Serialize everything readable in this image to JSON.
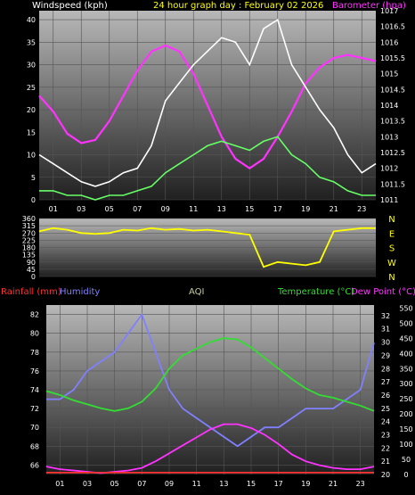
{
  "chart_data": [
    {
      "type": "line",
      "title": "24 hour graph day : February 02 2026",
      "ylabel": "Windspeed (kph)",
      "y2label": "Barometer (hpa)",
      "ylim": [
        0,
        42
      ],
      "y2lim": [
        1011,
        1017
      ],
      "yticks": [
        0,
        5,
        10,
        15,
        20,
        25,
        30,
        35,
        40
      ],
      "y2ticks": [
        1011,
        1011.5,
        1012,
        1012.5,
        1013,
        1013.5,
        1014,
        1014.5,
        1015,
        1015.5,
        1016,
        1016.5,
        1017
      ],
      "x_hours": [
        "01",
        "03",
        "05",
        "07",
        "09",
        "11",
        "13",
        "15",
        "17",
        "19",
        "21",
        "23"
      ],
      "colors": {
        "gust": "#ffffff",
        "wind": "#66ff66",
        "barometer": "#ff33ff"
      },
      "series": [
        {
          "axis": "y2",
          "hours": [
            0,
            1,
            2,
            3,
            4,
            5,
            6,
            7,
            8,
            9,
            10,
            11,
            12,
            13,
            14,
            15,
            16,
            17,
            18,
            19,
            20,
            21,
            22,
            23,
            24
          ],
          "values": [
            1014.3,
            1013.8,
            1013.1,
            1012.8,
            1012.9,
            1013.5,
            1014.3,
            1015.1,
            1015.7,
            1015.9,
            1015.7,
            1015.0,
            1014.0,
            1013.0,
            1012.3,
            1012.0,
            1012.3,
            1013.0,
            1013.8,
            1014.7,
            1015.2,
            1015.5,
            1015.6,
            1015.5,
            1015.4
          ]
        },
        {
          "axis": "y",
          "hours": [
            0,
            1,
            2,
            3,
            4,
            5,
            6,
            7,
            8,
            9,
            10,
            11,
            12,
            13,
            14,
            15,
            16,
            17,
            18,
            19,
            20,
            21,
            22,
            23,
            24
          ],
          "values": [
            10,
            8,
            6,
            4,
            3,
            4,
            6,
            7,
            12,
            22,
            26,
            30,
            33,
            36,
            35,
            30,
            38,
            40,
            30,
            25,
            20,
            16,
            10,
            6,
            8
          ]
        },
        {
          "axis": "y",
          "hours": [
            0,
            1,
            2,
            3,
            4,
            5,
            6,
            7,
            8,
            9,
            10,
            11,
            12,
            13,
            14,
            15,
            16,
            17,
            18,
            19,
            20,
            21,
            22,
            23,
            24
          ],
          "values": [
            2,
            2,
            1,
            1,
            0,
            1,
            1,
            2,
            3,
            6,
            8,
            10,
            12,
            13,
            12,
            11,
            13,
            14,
            10,
            8,
            5,
            4,
            2,
            1,
            1
          ]
        }
      ]
    },
    {
      "type": "line",
      "ylim": [
        0,
        360
      ],
      "yticks": [
        0,
        45,
        90,
        135,
        180,
        225,
        270,
        315,
        360
      ],
      "compass": [
        "N",
        "W",
        "S",
        "E",
        "N"
      ],
      "colors": {
        "direction": "#ffff00"
      },
      "series": [
        {
          "hours": [
            0,
            1,
            2,
            3,
            4,
            5,
            6,
            7,
            8,
            9,
            10,
            11,
            12,
            13,
            14,
            15,
            16,
            17,
            18,
            19,
            20,
            21,
            22,
            23,
            24
          ],
          "values": [
            280,
            300,
            290,
            270,
            265,
            270,
            290,
            285,
            300,
            290,
            295,
            285,
            290,
            280,
            270,
            260,
            60,
            90,
            80,
            70,
            90,
            280,
            290,
            300,
            300
          ]
        }
      ]
    },
    {
      "type": "line",
      "legend": {
        "rainfall": "Rainfall (mm)",
        "humidity": "Humidity",
        "aqi": "AQI",
        "temperature": "Temperature (°C)",
        "dewpoint": "Dew Point (°C)"
      },
      "ylabel": "Humidity",
      "ylim": [
        65,
        83
      ],
      "yticks": [
        66,
        68,
        70,
        72,
        74,
        76,
        78,
        80,
        82
      ],
      "y2lim": [
        20,
        32.8
      ],
      "y2ticks": [
        20,
        21,
        22,
        23,
        24,
        25,
        26,
        27,
        28,
        29,
        30,
        31,
        32
      ],
      "y3lim": [
        0,
        560
      ],
      "y3ticks": [
        0,
        50,
        100,
        150,
        200,
        250,
        300,
        350,
        400,
        450,
        500,
        550
      ],
      "x_hours": [
        "01",
        "03",
        "05",
        "07",
        "09",
        "11",
        "13",
        "15",
        "17",
        "19",
        "21",
        "23"
      ],
      "colors": {
        "rainfall": "#ff3333",
        "humidity": "#8080ff",
        "aqi": "#c8c8a0",
        "temperature": "#33dd33",
        "dewpoint": "#ff33ff"
      },
      "series": [
        {
          "name": "Humidity",
          "axis": "y",
          "hours": [
            0,
            1,
            2,
            3,
            4,
            5,
            6,
            7,
            8,
            9,
            10,
            11,
            12,
            13,
            14,
            15,
            16,
            17,
            18,
            19,
            20,
            21,
            22,
            23,
            24
          ],
          "values": [
            73,
            73,
            74,
            76,
            77,
            78,
            80,
            82,
            78,
            74,
            72,
            71,
            70,
            69,
            68,
            69,
            70,
            70,
            71,
            72,
            72,
            72,
            73,
            74,
            79
          ]
        },
        {
          "name": "Temperature (°C)",
          "axis": "y2",
          "hours": [
            0,
            1,
            2,
            3,
            4,
            5,
            6,
            7,
            8,
            9,
            10,
            11,
            12,
            13,
            14,
            15,
            16,
            17,
            18,
            19,
            20,
            21,
            22,
            23,
            24
          ],
          "values": [
            26.3,
            26.0,
            25.6,
            25.3,
            25.0,
            24.8,
            25.0,
            25.5,
            26.5,
            28.0,
            29.0,
            29.5,
            30.0,
            30.3,
            30.2,
            29.6,
            28.8,
            28.0,
            27.2,
            26.5,
            26.0,
            25.8,
            25.5,
            25.2,
            24.8
          ]
        },
        {
          "name": "Dew Point (°C)",
          "axis": "y2",
          "hours": [
            0,
            1,
            2,
            3,
            4,
            5,
            6,
            7,
            8,
            9,
            10,
            11,
            12,
            13,
            14,
            15,
            16,
            17,
            18,
            19,
            20,
            21,
            22,
            23,
            24
          ],
          "values": [
            20.6,
            20.4,
            20.3,
            20.2,
            20.1,
            20.2,
            20.3,
            20.5,
            21.0,
            21.6,
            22.2,
            22.8,
            23.4,
            23.8,
            23.8,
            23.5,
            23.0,
            22.3,
            21.5,
            21.0,
            20.7,
            20.5,
            20.4,
            20.4,
            20.6
          ]
        },
        {
          "name": "Rainfall (mm)",
          "axis": "y",
          "hours": [
            0,
            24
          ],
          "values": [
            65.2,
            65.2
          ]
        }
      ]
    }
  ]
}
